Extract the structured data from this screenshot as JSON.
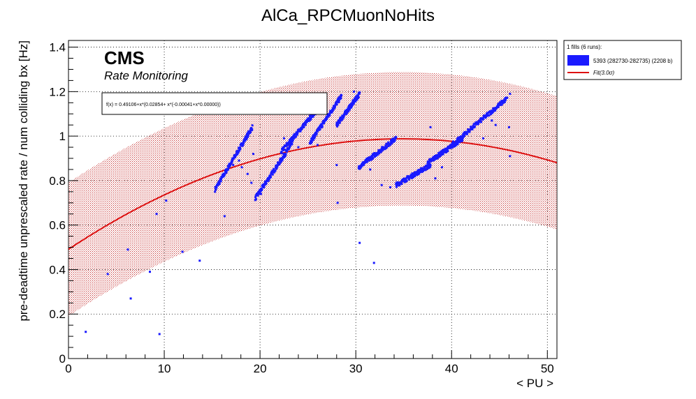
{
  "chart_data": {
    "type": "scatter",
    "title": "AlCa_RPCMuonNoHits",
    "xlabel": "< PU >",
    "ylabel": "pre-deadtime unprescaled rate / num colliding bx [Hz]",
    "xlim": [
      0,
      51
    ],
    "ylim": [
      0,
      1.43
    ],
    "x_ticks": [
      "0",
      "10",
      "20",
      "30",
      "40",
      "50"
    ],
    "y_ticks": [
      "0",
      "0.2",
      "0.4",
      "0.6",
      "0.8",
      "1",
      "1.2",
      "1.4"
    ],
    "x_tick_values": [
      0,
      10,
      20,
      30,
      40,
      50
    ],
    "y_tick_values": [
      0,
      0.2,
      0.4,
      0.6,
      0.8,
      1.0,
      1.2,
      1.4
    ],
    "grid": true,
    "cms_label": "CMS",
    "cms_sublabel": "Rate Monitoring",
    "fit_formula": "f(x) = 0.49106+x*(0.02854+ x*(-0.00041+x*0.00000))",
    "fit_coefficients": [
      0.49106,
      0.02854,
      -0.00041,
      0.0
    ],
    "fit_band_sigma": 0.3,
    "legend": {
      "header": "1 fills (6 runs):",
      "placement": "outside-right-top",
      "entries": [
        {
          "label": "5393 (282730-282735) (2208 b)",
          "color": "#1a1aff",
          "kind": "fill"
        },
        {
          "label": "Fit(3.0σ)",
          "color": "#dd1111",
          "kind": "line"
        }
      ]
    },
    "series": [
      {
        "name": "5393 (282730-282735) (2208 b)",
        "color": "#1a1aff",
        "bands": [
          {
            "x": [
              15.3,
              19.2
            ],
            "y": [
              0.76,
              1.04
            ]
          },
          {
            "x": [
              19.5,
              23.4
            ],
            "y": [
              0.72,
              0.97
            ]
          },
          {
            "x": [
              22.2,
              26.6
            ],
            "y": [
              0.93,
              1.15
            ]
          },
          {
            "x": [
              25.2,
              28.5
            ],
            "y": [
              0.97,
              1.18
            ]
          },
          {
            "x": [
              28.0,
              30.4
            ],
            "y": [
              1.05,
              1.19
            ]
          },
          {
            "x": [
              30.3,
              34.2
            ],
            "y": [
              0.86,
              0.99
            ]
          },
          {
            "x": [
              34.2,
              37.8
            ],
            "y": [
              0.78,
              0.87
            ]
          },
          {
            "x": [
              37.5,
              41.2
            ],
            "y": [
              0.88,
              0.99
            ]
          },
          {
            "x": [
              40.0,
              45.8
            ],
            "y": [
              0.96,
              1.17
            ]
          }
        ],
        "outliers": [
          [
            1.8,
            0.12
          ],
          [
            4.1,
            0.38
          ],
          [
            6.2,
            0.49
          ],
          [
            6.5,
            0.27
          ],
          [
            8.5,
            0.39
          ],
          [
            9.2,
            0.65
          ],
          [
            9.5,
            0.11
          ],
          [
            10.2,
            0.71
          ],
          [
            11.9,
            0.48
          ],
          [
            13.7,
            0.44
          ],
          [
            16.3,
            0.64
          ],
          [
            17.2,
            0.87
          ],
          [
            17.8,
            0.89
          ],
          [
            18.1,
            0.86
          ],
          [
            18.7,
            0.83
          ],
          [
            19.1,
            0.79
          ],
          [
            26.0,
            0.96
          ],
          [
            28.0,
            0.87
          ],
          [
            28.1,
            0.7
          ],
          [
            30.4,
            0.52
          ],
          [
            31.9,
            0.43
          ],
          [
            32.7,
            0.78
          ],
          [
            33.6,
            0.77
          ],
          [
            37.8,
            1.04
          ],
          [
            43.3,
            0.99
          ],
          [
            44.2,
            1.07
          ],
          [
            44.6,
            1.05
          ],
          [
            46.0,
            1.04
          ],
          [
            46.1,
            0.91
          ],
          [
            46.1,
            1.19
          ],
          [
            40.2,
            0.96
          ],
          [
            20.1,
            0.74
          ],
          [
            19.3,
            0.92
          ],
          [
            22.5,
            0.99
          ],
          [
            24.0,
            0.95
          ],
          [
            29.8,
            1.2
          ],
          [
            31.5,
            0.85
          ],
          [
            38.3,
            0.81
          ],
          [
            39.0,
            0.86
          ]
        ]
      }
    ]
  }
}
